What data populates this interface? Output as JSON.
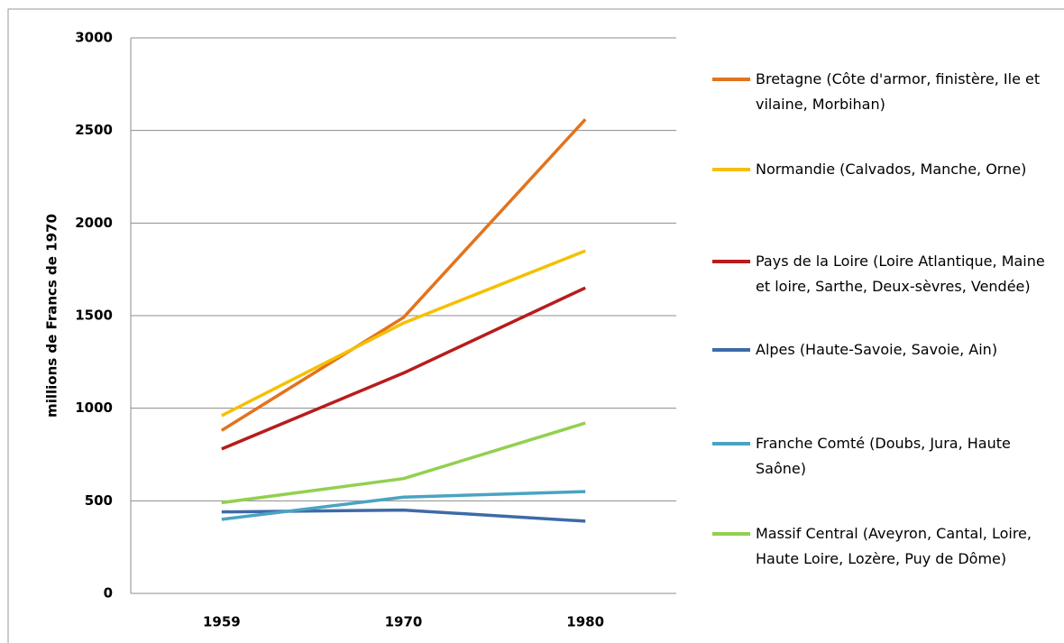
{
  "chart_data": {
    "type": "line",
    "y_label": "millions de Francs de 1970",
    "categories": [
      "1959",
      "1970",
      "1980"
    ],
    "series": [
      {
        "name": "Bretagne (Côte d'armor, finistère, Ile et vilaine, Morbihan)",
        "color": "#e3731c",
        "values": [
          880,
          1490,
          2560
        ]
      },
      {
        "name": "Normandie (Calvados, Manche, Orne)",
        "color": "#f5c000",
        "values": [
          960,
          1460,
          1850
        ]
      },
      {
        "name": "Pays de la Loire (Loire Atlantique, Maine et loire, Sarthe, Deux-sèvres, Vendée)",
        "color": "#b81c1c",
        "values": [
          780,
          1190,
          1650
        ]
      },
      {
        "name": "Alpes (Haute-Savoie, Savoie, Ain)",
        "color": "#3e6aa8",
        "values": [
          440,
          450,
          390
        ]
      },
      {
        "name": "Franche Comté (Doubs, Jura, Haute Saône)",
        "color": "#4aa3c3",
        "values": [
          400,
          520,
          550
        ]
      },
      {
        "name": "Massif Central (Aveyron, Cantal, Loire, Haute Loire, Lozère, Puy de Dôme)",
        "color": "#92d050",
        "values": [
          490,
          620,
          920
        ]
      }
    ],
    "ylim": [
      0,
      3000
    ],
    "yticks": [
      0,
      500,
      1000,
      1500,
      2000,
      2500,
      3000
    ],
    "grid": true,
    "legend": "right"
  }
}
